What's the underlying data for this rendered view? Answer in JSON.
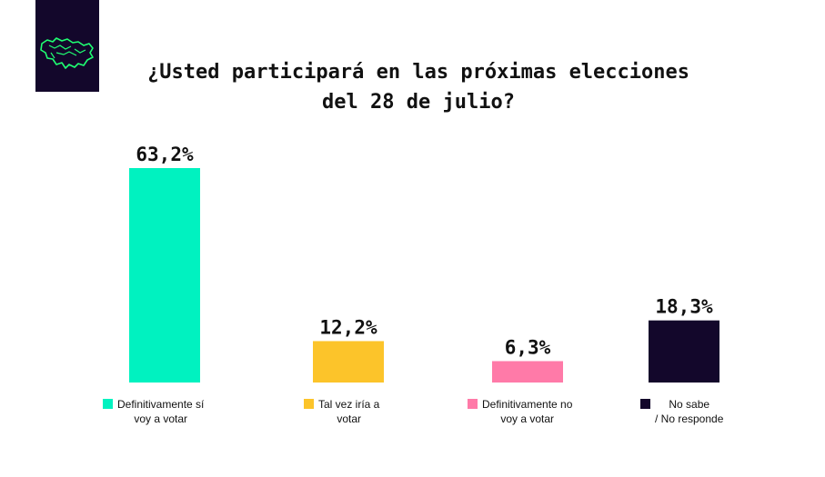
{
  "title_lines": [
    "¿Usted participará en las próximas elecciones",
    "del 28 de julio?"
  ],
  "logo": {
    "icon": "venezuela-map-icon",
    "color": "#1fff72",
    "bg": "#13072b"
  },
  "chart_data": {
    "type": "bar",
    "title": "¿Usted participará en las próximas elecciones del 28 de julio?",
    "categories": [
      "Definitivamente sí voy a votar",
      "Tal vez iría a votar",
      "Definitivamente no voy a votar",
      "No sabe / No responde"
    ],
    "values": [
      63.2,
      12.2,
      6.3,
      18.3
    ],
    "value_labels": [
      "63,2%",
      "12,2%",
      "6,3%",
      "18,3%"
    ],
    "colors": [
      "#00f2c0",
      "#fcc42a",
      "#ff7aa8",
      "#13072b"
    ],
    "ylim": [
      0,
      63.2
    ],
    "grid": false,
    "legend_placement": "bottom"
  },
  "legend": [
    {
      "line1": "Definitivamente sí",
      "line2": "voy a votar",
      "color": "#00f2c0"
    },
    {
      "line1": "Tal vez iría a",
      "line2": "votar",
      "color": "#fcc42a"
    },
    {
      "line1": "Definitivamente no",
      "line2": "voy a votar",
      "color": "#ff7aa8"
    },
    {
      "line1": "No sabe",
      "line2": "/ No responde",
      "color": "#13072b"
    }
  ]
}
